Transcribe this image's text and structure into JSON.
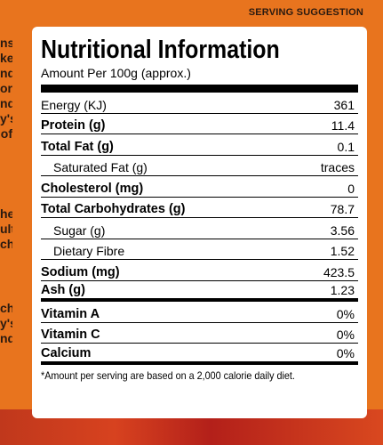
{
  "serving_suggestion": "SERVING SUGGESTION",
  "edge_fragments": [
    "ns",
    "ke",
    "nd",
    "or",
    "nd",
    "y's",
    "of",
    "",
    "",
    "he",
    "ult",
    "ch",
    "",
    "",
    "",
    "ch",
    "y's",
    "nd"
  ],
  "label": {
    "title": "Nutritional Information",
    "subtitle": "Amount Per 100g (approx.)",
    "rows": [
      {
        "name": "Energy (KJ)",
        "value": "361"
      },
      {
        "name": "Protein (g)",
        "value": "11.4"
      },
      {
        "name": "Total Fat (g)",
        "value": "0.1"
      },
      {
        "name": "Saturated Fat (g)",
        "value": "traces"
      },
      {
        "name": "Cholesterol (mg)",
        "value": "0"
      },
      {
        "name": "Total Carbohydrates (g)",
        "value": "78.7"
      },
      {
        "name": "Sugar (g)",
        "value": "3.56"
      },
      {
        "name": "Dietary Fibre",
        "value": "1.52"
      },
      {
        "name": "Sodium (mg)",
        "value": "423.5"
      },
      {
        "name": "Ash (g)",
        "value": "1.23"
      },
      {
        "name": "Vitamin A",
        "value": "0%"
      },
      {
        "name": "Vitamin C",
        "value": "0%"
      },
      {
        "name": "Calcium",
        "value": "0%"
      }
    ],
    "footnote": "*Amount per serving are based on a 2,000 calorie daily diet."
  }
}
